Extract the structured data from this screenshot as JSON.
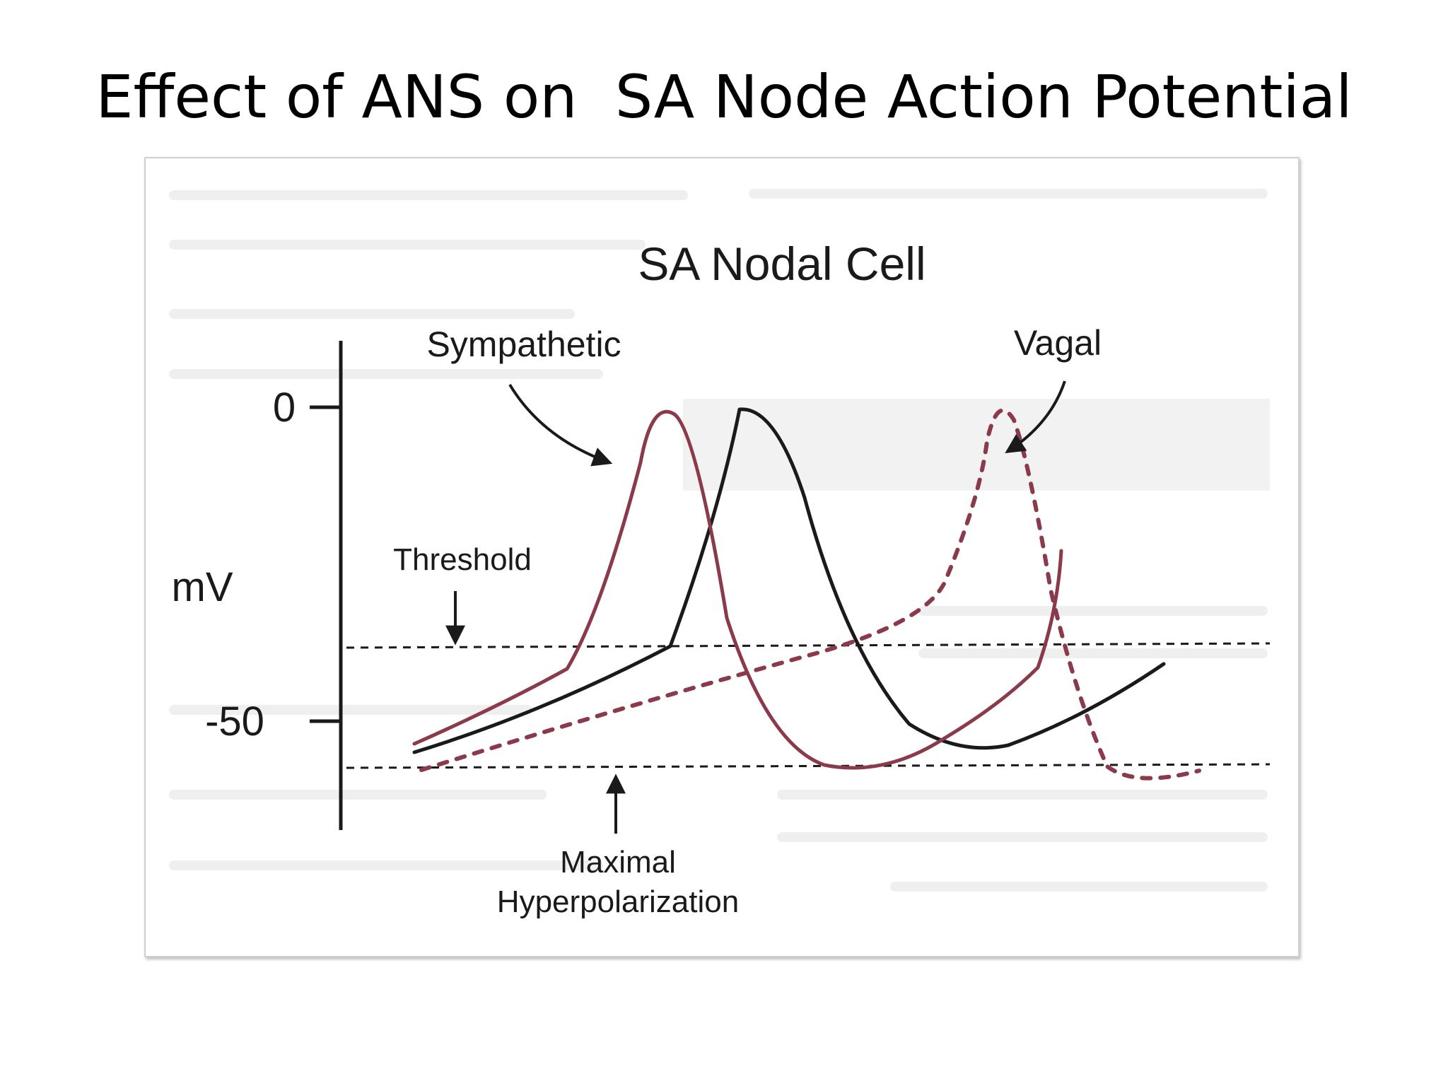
{
  "slide": {
    "title": "Effect of ANS on  SA Node Action Potential"
  },
  "figure": {
    "title": "SA Nodal Cell",
    "y_axis": {
      "label": "mV",
      "ticks": [
        "0",
        "-50"
      ]
    },
    "annotations": {
      "sympathetic": "Sympathetic",
      "vagal": "Vagal",
      "threshold": "Threshold",
      "maximal_line1": "Maximal",
      "maximal_line2": "Hyperpolarization"
    },
    "colors": {
      "normal": "#1a1a1a",
      "sympathetic": "#8a3a4a",
      "vagal": "#8a3a4a",
      "reference_lines": "#1a1a1a",
      "background_text": "#eaeaea"
    }
  }
}
